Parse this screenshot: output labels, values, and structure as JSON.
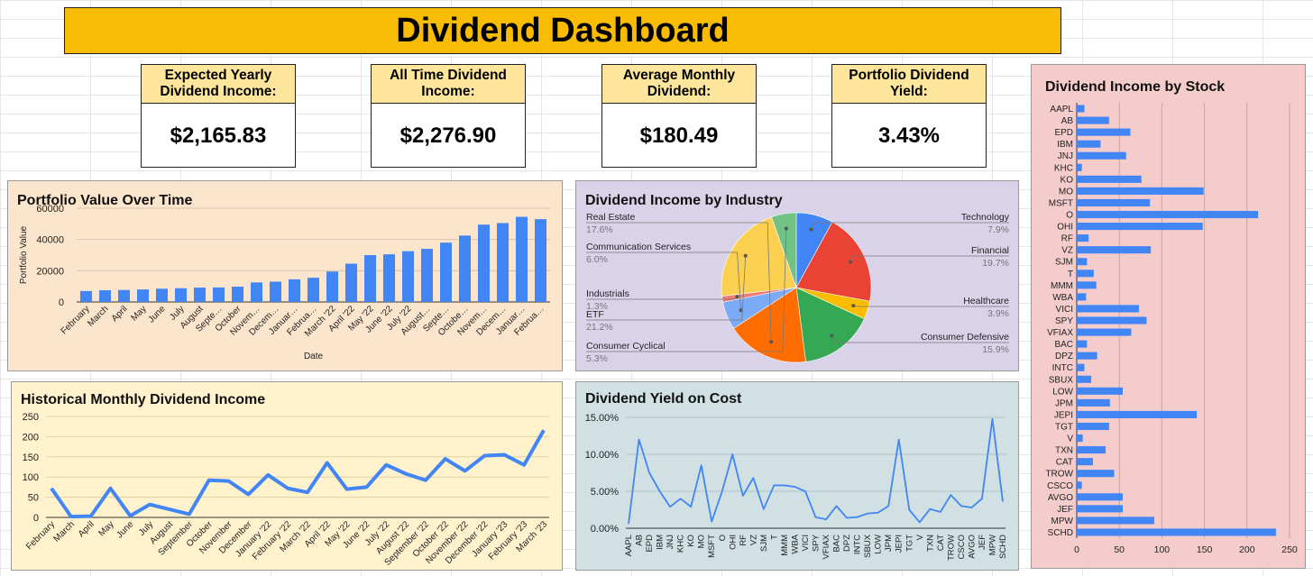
{
  "dashboard": {
    "title": "Dividend Dashboard"
  },
  "kpis": [
    {
      "label": "Expected Yearly Dividend Income:",
      "value": "$2,165.83"
    },
    {
      "label": "All Time Dividend Income:",
      "value": "$2,276.90"
    },
    {
      "label": "Average Monthly Dividend:",
      "value": "$180.49"
    },
    {
      "label": "Portfolio Dividend Yield:",
      "value": "3.43%"
    }
  ],
  "colors": {
    "accent": "#4285f4",
    "banner": "#f9bc05",
    "kpi_label": "#fde59b"
  },
  "chart_data": [
    {
      "id": "portfolio",
      "type": "bar",
      "title": "Portfolio Value Over Time",
      "xlabel": "Date",
      "ylabel": "Portfolio Value",
      "ylim": [
        0,
        60000
      ],
      "yticks": [
        "0",
        "20000",
        "40000",
        "60000"
      ],
      "grid": true,
      "background": "#fce5cd",
      "categories": [
        "February",
        "March",
        "April",
        "May",
        "June",
        "July",
        "August",
        "Septe…",
        "October",
        "Novem…",
        "Decem…",
        "Januar…",
        "Februa…",
        "March '22",
        "April '22",
        "May '22",
        "June '22",
        "July '22",
        "August…",
        "Septe…",
        "Octobe…",
        "Novem…",
        "Decem…",
        "Januar…",
        "Februa…"
      ],
      "values": [
        7000,
        7500,
        7700,
        8000,
        8500,
        8800,
        9200,
        9300,
        9800,
        12500,
        13000,
        14500,
        15500,
        19500,
        24500,
        30000,
        30500,
        32500,
        34000,
        38000,
        42500,
        49500,
        50500,
        54500,
        53000
      ]
    },
    {
      "id": "industry",
      "type": "pie",
      "title": "Dividend Income by Industry",
      "background": "#d9d2e9",
      "slices": [
        {
          "label": "Technology",
          "value": "7.9%",
          "pct": 7.9,
          "color": "#4285f4"
        },
        {
          "label": "Financial",
          "value": "19.7%",
          "pct": 19.7,
          "color": "#ea4335"
        },
        {
          "label": "Healthcare",
          "value": "3.9%",
          "pct": 3.9,
          "color": "#fbbc04"
        },
        {
          "label": "Consumer Defensive",
          "value": "15.9%",
          "pct": 15.9,
          "color": "#34a853"
        },
        {
          "label": "Real Estate",
          "value": "17.6%",
          "pct": 17.6,
          "color": "#ff6d01"
        },
        {
          "label": "Communication Services",
          "value": "6.0%",
          "pct": 6.0,
          "color": "#7baaf7"
        },
        {
          "label": "Industrials",
          "value": "1.3%",
          "pct": 1.3,
          "color": "#f07b72"
        },
        {
          "label": "ETF",
          "value": "21.2%",
          "pct": 21.2,
          "color": "#fcd04f"
        },
        {
          "label": "Consumer Cyclical",
          "value": "5.3%",
          "pct": 5.3,
          "color": "#71c287"
        }
      ]
    },
    {
      "id": "monthly",
      "type": "line",
      "title": "Historical Monthly Dividend Income",
      "ylim": [
        0,
        250
      ],
      "yticks": [
        "0",
        "50",
        "100",
        "150",
        "200",
        "250"
      ],
      "grid": true,
      "background": "#fff2cc",
      "categories": [
        "February",
        "March",
        "April",
        "May",
        "June",
        "July",
        "August",
        "September",
        "October",
        "November",
        "December",
        "January '22",
        "February '22",
        "March '22",
        "April '22",
        "May '22",
        "June '22",
        "July '22",
        "August '22",
        "September '22",
        "October '22",
        "November '22",
        "December '22",
        "January '23",
        "February '23",
        "March '23"
      ],
      "values": [
        72,
        2,
        3,
        72,
        4,
        32,
        20,
        8,
        92,
        90,
        57,
        105,
        72,
        62,
        135,
        70,
        75,
        130,
        108,
        92,
        145,
        115,
        153,
        155,
        130,
        216
      ]
    },
    {
      "id": "yield",
      "type": "line",
      "title": "Dividend Yield on Cost",
      "ylim": [
        0,
        15
      ],
      "yticks": [
        "0.00%",
        "5.00%",
        "10.00%",
        "15.00%"
      ],
      "grid": true,
      "background": "#d0e0e3",
      "categories": [
        "AAPL",
        "AB",
        "EPD",
        "IBM",
        "JNJ",
        "KHC",
        "KO",
        "MO",
        "MSFT",
        "O",
        "OHI",
        "RF",
        "VZ",
        "SJM",
        "T",
        "MMM",
        "WBA",
        "VICI",
        "SPY",
        "VFIAX",
        "BAC",
        "DPZ",
        "INTC",
        "SBUX",
        "LOW",
        "JPM",
        "JEPI",
        "TGT",
        "V",
        "TXN",
        "CAT",
        "TROW",
        "CSCO",
        "AVGO",
        "JEF",
        "MPW",
        "SCHD"
      ],
      "values": [
        0.6,
        12.0,
        7.5,
        5.0,
        2.9,
        4.0,
        2.9,
        8.5,
        0.9,
        5.0,
        10.0,
        4.4,
        6.8,
        2.6,
        5.8,
        5.8,
        5.6,
        5.0,
        1.5,
        1.2,
        3.0,
        1.4,
        1.5,
        2.0,
        2.1,
        3.0,
        12.0,
        2.5,
        0.8,
        2.6,
        2.2,
        4.5,
        3.0,
        2.8,
        4.0,
        14.8,
        3.6
      ]
    },
    {
      "id": "bystock",
      "type": "bar",
      "orientation": "horizontal",
      "title": "Dividend Income by Stock",
      "xlim": [
        0,
        250
      ],
      "xticks": [
        "0",
        "50",
        "100",
        "150",
        "200",
        "250"
      ],
      "grid": true,
      "background": "#f4cccc",
      "categories": [
        "AAPL",
        "AB",
        "EPD",
        "IBM",
        "JNJ",
        "KHC",
        "KO",
        "MO",
        "MSFT",
        "O",
        "OHI",
        "RF",
        "VZ",
        "SJM",
        "T",
        "MMM",
        "WBA",
        "VICI",
        "SPY",
        "VFIAX",
        "BAC",
        "DPZ",
        "INTC",
        "SBUX",
        "LOW",
        "JPM",
        "JEPI",
        "TGT",
        "V",
        "TXN",
        "CAT",
        "TROW",
        "CSCO",
        "AVGO",
        "JEF",
        "MPW",
        "SCHD"
      ],
      "values": [
        9,
        38,
        63,
        28,
        58,
        6,
        76,
        149,
        86,
        213,
        148,
        14,
        87,
        12,
        20,
        23,
        11,
        73,
        82,
        64,
        12,
        24,
        9,
        17,
        54,
        39,
        141,
        38,
        7,
        34,
        19,
        44,
        6,
        54,
        54,
        91,
        234
      ]
    }
  ]
}
